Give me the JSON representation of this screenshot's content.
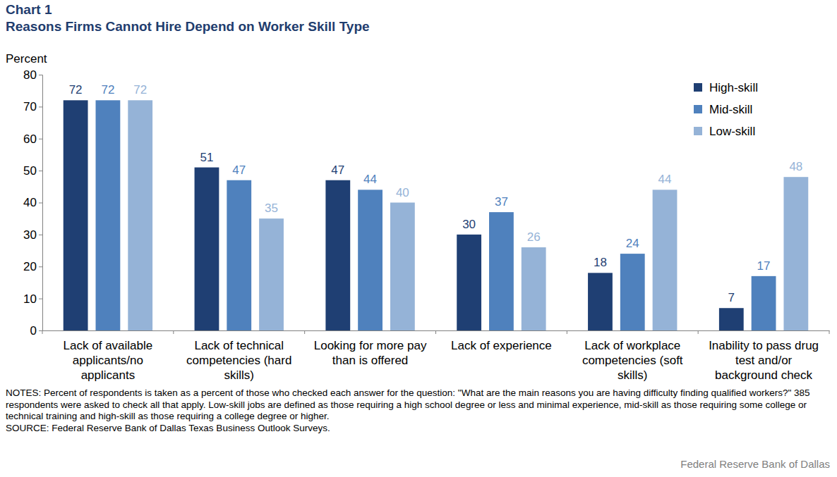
{
  "chart_data": {
    "type": "bar",
    "chart_number": "Chart 1",
    "title": "Reasons Firms Cannot Hire Depend on Worker Skill Type",
    "ylabel": "Percent",
    "categories": [
      "Lack of available applicants/no applicants",
      "Lack of technical competencies (hard skills)",
      "Looking for more pay than is offered",
      "Lack of experience",
      "Lack of workplace competencies (soft skills)",
      "Inability to pass drug test and/or background check"
    ],
    "series": [
      {
        "name": "High-skill",
        "color": "#1f3f73",
        "values": [
          72,
          51,
          47,
          30,
          18,
          7
        ]
      },
      {
        "name": "Mid-skill",
        "color": "#4f81bd",
        "values": [
          72,
          47,
          44,
          37,
          24,
          17
        ]
      },
      {
        "name": "Low-skill",
        "color": "#95b3d7",
        "values": [
          72,
          35,
          40,
          26,
          44,
          48
        ]
      }
    ],
    "ylim": [
      0,
      80
    ],
    "yticks": [
      0,
      10,
      20,
      30,
      40,
      50,
      60,
      70,
      80
    ],
    "grid": false,
    "legend": "top-right",
    "data_labels": true,
    "notes": "NOTES: Percent of respondents is taken as a percent of those who checked each answer for the question: \"What are the main reasons you are having difficulty finding qualified workers?\" 385 respondents were asked to check all that apply. Low-skill jobs are defined as those requiring a high school degree or less and minimal experience, mid-skill as those requiring some college or technical training and high-skill as those requiring a college degree or higher.",
    "source": "SOURCE: Federal Reserve Bank of Dallas Texas Business Outlook Surveys.",
    "credit": "Federal Reserve Bank of Dallas"
  }
}
